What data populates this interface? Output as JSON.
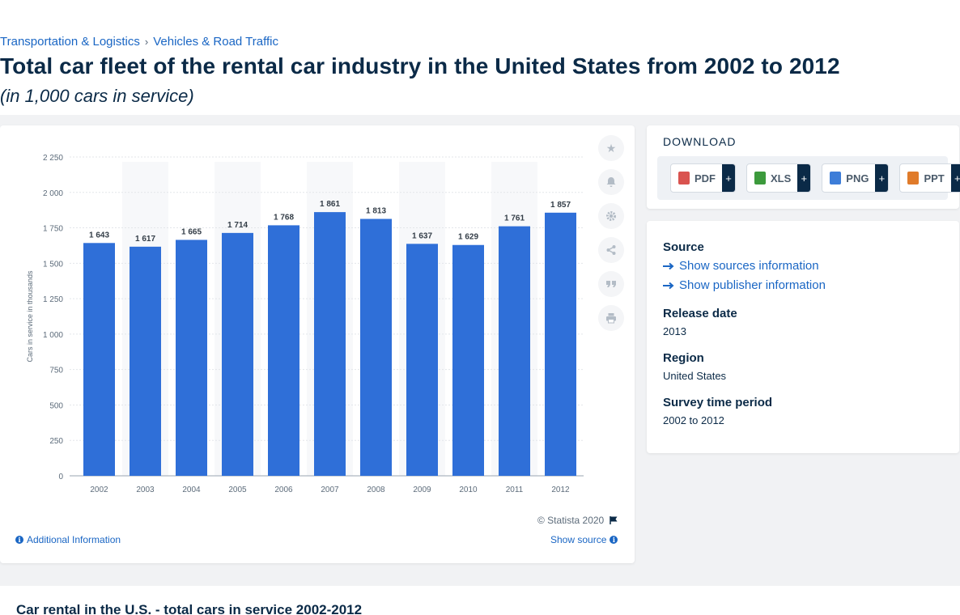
{
  "breadcrumb": {
    "item1": "Transportation & Logistics",
    "separator": "›",
    "item2": "Vehicles & Road Traffic"
  },
  "page": {
    "title": "Total car fleet of the rental car industry in the United States from 2002 to 2012",
    "subtitle": "(in 1,000 cars in service)"
  },
  "chart_data": {
    "type": "bar",
    "categories": [
      "2002",
      "2003",
      "2004",
      "2005",
      "2006",
      "2007",
      "2008",
      "2009",
      "2010",
      "2011",
      "2012"
    ],
    "values": [
      1643,
      1617,
      1665,
      1714,
      1768,
      1861,
      1813,
      1637,
      1629,
      1761,
      1857
    ],
    "value_labels": [
      "1 643",
      "1 617",
      "1 665",
      "1 714",
      "1 768",
      "1 861",
      "1 813",
      "1 637",
      "1 629",
      "1 761",
      "1 857"
    ],
    "ylabel": "Cars in service in thousands",
    "xlabel": "",
    "ylim": [
      0,
      2250
    ],
    "yticks": [
      0,
      250,
      500,
      750,
      1000,
      1250,
      1500,
      1750,
      2000,
      2250
    ],
    "ytick_labels": [
      "0",
      "250",
      "500",
      "750",
      "1 000",
      "1 250",
      "1 500",
      "1 750",
      "2 000",
      "2 250"
    ],
    "grid": true,
    "bar_color": "#2f6fd8"
  },
  "chart_footer": {
    "copyright": "© Statista 2020",
    "additional_info": "Additional Information",
    "show_source": "Show source"
  },
  "download": {
    "title": "DOWNLOAD",
    "buttons": [
      {
        "label": "PDF",
        "plus": "+",
        "color": "#d9534f"
      },
      {
        "label": "XLS",
        "plus": "+",
        "color": "#3c9a3c"
      },
      {
        "label": "PNG",
        "plus": "+",
        "color": "#3d7dd8"
      },
      {
        "label": "PPT",
        "plus": "+",
        "color": "#e07b2a"
      }
    ]
  },
  "meta": {
    "source_heading": "Source",
    "sources_link": "Show sources information",
    "publisher_link": "Show publisher information",
    "release_heading": "Release date",
    "release_value": "2013",
    "region_heading": "Region",
    "region_value": "United States",
    "period_heading": "Survey time period",
    "period_value": "2002 to 2012"
  },
  "bottom": {
    "title": "Car rental in the U.S. - total cars in service 2002-2012"
  },
  "icons": [
    "star-icon",
    "bell-icon",
    "gear-icon",
    "share-icon",
    "quote-icon",
    "print-icon",
    "flag-icon",
    "info-icon",
    "arrow-right-icon"
  ]
}
